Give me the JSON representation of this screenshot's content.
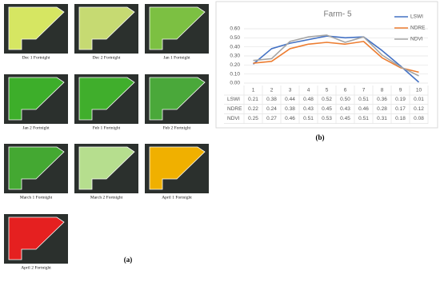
{
  "panel_a": {
    "label": "(a)",
    "captions": [
      "Dec 1 Fortnight",
      "Dec 2 Fortnight",
      "Jan 1 Fortnight",
      "Jan 2 Fortnight",
      "Feb 1 Fortnight",
      "Feb 2 Fortnight",
      "March 1 Fortnight",
      "March 2 Fortnight",
      "April 1 Fortnight",
      "April 2 Fortnight"
    ]
  },
  "panel_b": {
    "label": "(b)"
  },
  "chart_data": {
    "type": "line",
    "title": "Farm- 5",
    "categories": [
      "1",
      "2",
      "3",
      "4",
      "5",
      "6",
      "7",
      "8",
      "9",
      "10"
    ],
    "series": [
      {
        "name": "LSWI",
        "color": "#4472c4",
        "values": [
          0.21,
          0.38,
          0.44,
          0.48,
          0.52,
          0.5,
          0.51,
          0.36,
          0.19,
          0.01
        ],
        "value_labels": [
          "0.21",
          "0.38",
          "0.44",
          "0.48",
          "0.52",
          "0.50",
          "0.51",
          "0.36",
          "0.19",
          "0.01"
        ]
      },
      {
        "name": "NDRE",
        "color": "#ed7d31",
        "values": [
          0.22,
          0.24,
          0.38,
          0.43,
          0.45,
          0.43,
          0.46,
          0.28,
          0.17,
          0.12
        ],
        "value_labels": [
          "0.22",
          "0.24",
          "0.38",
          "0.43",
          "0.45",
          "0.43",
          "0.46",
          "0.28",
          "0.17",
          "0.12"
        ]
      },
      {
        "name": "NDVI",
        "color": "#a5a5a5",
        "values": [
          0.25,
          0.27,
          0.46,
          0.51,
          0.53,
          0.45,
          0.51,
          0.31,
          0.18,
          0.08
        ],
        "value_labels": [
          "0.25",
          "0.27",
          "0.46",
          "0.51",
          "0.53",
          "0.45",
          "0.51",
          "0.31",
          "0.18",
          "0.08"
        ]
      }
    ],
    "ylim": [
      0,
      0.6
    ],
    "yticks": [
      {
        "value": 0,
        "label": "0.00"
      },
      {
        "value": 0.1,
        "label": "0.10"
      },
      {
        "value": 0.2,
        "label": "0.20"
      },
      {
        "value": 0.3,
        "label": "0.30"
      },
      {
        "value": 0.4,
        "label": "0.40"
      },
      {
        "value": 0.5,
        "label": "0.50"
      },
      {
        "value": 0.6,
        "label": "0.60"
      }
    ],
    "grid": true,
    "legend": "top-right"
  }
}
